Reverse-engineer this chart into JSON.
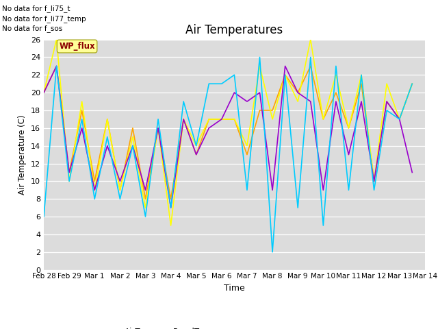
{
  "title": "Air Temperatures",
  "ylabel": "Air Temperature (C)",
  "xlabel": "Time",
  "no_data_texts": [
    "No data for f_li75_t",
    "No data for f_li77_temp",
    "No data for f_sos"
  ],
  "wp_flux_label": "WP_flux",
  "ylim": [
    0,
    26
  ],
  "yticks": [
    0,
    2,
    4,
    6,
    8,
    10,
    12,
    14,
    16,
    18,
    20,
    22,
    24,
    26
  ],
  "series": {
    "AirT": {
      "color": "#ffa500",
      "linewidth": 1.2
    },
    "PanelTemp": {
      "color": "#ffff00",
      "linewidth": 1.2
    },
    "NR01_PRT": {
      "color": "#9900cc",
      "linewidth": 1.2
    },
    "AM25T_PRT": {
      "color": "#00ccff",
      "linewidth": 1.2
    }
  },
  "x_labels": [
    "Feb 28",
    "Feb 29",
    "Mar 1",
    "Mar 2",
    "Mar 3",
    "Mar 4",
    "Mar 5",
    "Mar 6",
    "Mar 7",
    "Mar 8",
    "Mar 9",
    "Mar 10",
    "Mar 11",
    "Mar 12",
    "Mar 13",
    "Mar 14"
  ],
  "x_ticks": [
    0,
    1,
    2,
    3,
    4,
    5,
    6,
    7,
    8,
    9,
    10,
    11,
    12,
    13,
    14,
    15
  ],
  "xlim": [
    0,
    15
  ],
  "AirT_x": [
    0.0,
    0.5,
    1.0,
    1.5,
    2.0,
    2.5,
    3.0,
    3.5,
    4.0,
    4.5,
    5.0,
    5.5,
    6.0,
    6.5,
    7.0,
    7.5,
    8.0,
    8.5,
    9.0,
    9.5,
    10.0,
    10.5,
    11.0,
    11.5,
    12.0,
    12.5,
    13.0,
    13.5,
    14.0,
    14.5
  ],
  "AirT_y": [
    20,
    23,
    11,
    18,
    10,
    17,
    9,
    16,
    8,
    16,
    8,
    17,
    13,
    17,
    17,
    17,
    13,
    18,
    18,
    22,
    20,
    23,
    17,
    20,
    16,
    21,
    10,
    19,
    17,
    21
  ],
  "PanelTemp_x": [
    0.0,
    0.5,
    1.0,
    1.5,
    2.0,
    2.5,
    3.0,
    3.5,
    4.0,
    4.5,
    5.0,
    5.5,
    6.0,
    6.5,
    7.0,
    7.5,
    8.0,
    8.5,
    9.0,
    9.5,
    10.0,
    10.5,
    11.0,
    11.5,
    12.0,
    12.5,
    13.0,
    13.5,
    14.0,
    14.5
  ],
  "PanelTemp_y": [
    20,
    26,
    10,
    19,
    9,
    17,
    9,
    15,
    7,
    16,
    5,
    17,
    14,
    17,
    17,
    17,
    14,
    23,
    17,
    22,
    19,
    26,
    17,
    22,
    16,
    22,
    10,
    21,
    17,
    21
  ],
  "NR01_PRT_x": [
    0.0,
    0.5,
    1.0,
    1.5,
    2.0,
    2.5,
    3.0,
    3.5,
    4.0,
    4.5,
    5.0,
    5.5,
    6.0,
    6.5,
    7.0,
    7.5,
    8.0,
    8.5,
    9.0,
    9.5,
    10.0,
    10.5,
    11.0,
    11.5,
    12.0,
    12.5,
    13.0,
    13.5,
    14.0,
    14.5
  ],
  "NR01_PRT_y": [
    20,
    23,
    11,
    16,
    9,
    14,
    10,
    14,
    9,
    16,
    7,
    17,
    13,
    16,
    17,
    20,
    19,
    20,
    9,
    23,
    20,
    19,
    9,
    19,
    13,
    19,
    10,
    19,
    17,
    11
  ],
  "AM25T_PRT_x": [
    0.0,
    0.5,
    1.0,
    1.5,
    2.0,
    2.5,
    3.0,
    3.5,
    4.0,
    4.5,
    5.0,
    5.5,
    6.0,
    6.5,
    7.0,
    7.5,
    8.0,
    8.5,
    9.0,
    9.5,
    10.0,
    10.5,
    11.0,
    11.5,
    12.0,
    12.5,
    13.0,
    13.5,
    14.0,
    14.5
  ],
  "AM25T_PRT_y": [
    6,
    23,
    10,
    17,
    8,
    15,
    8,
    14,
    6,
    17,
    7,
    19,
    14,
    21,
    21,
    22,
    9,
    24,
    2,
    22,
    7,
    24,
    5,
    23,
    9,
    22,
    9,
    18,
    17,
    21
  ]
}
